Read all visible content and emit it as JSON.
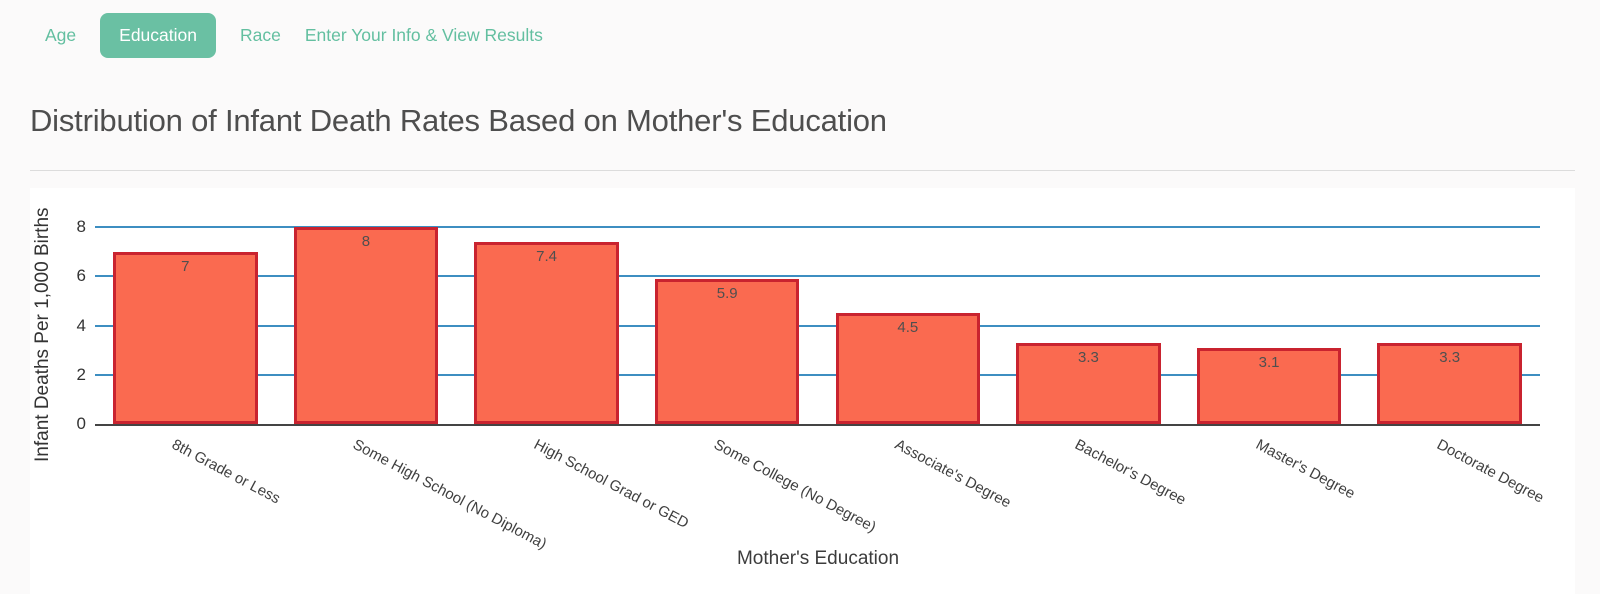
{
  "nav": {
    "tabs": [
      {
        "label": "Age",
        "active": false
      },
      {
        "label": "Education",
        "active": true
      },
      {
        "label": "Race",
        "active": false
      },
      {
        "label": "Enter Your Info & View Results",
        "active": false
      }
    ]
  },
  "page": {
    "title": "Distribution of Infant Death Rates Based on Mother's Education"
  },
  "chart_data": {
    "type": "bar",
    "title": "Distribution of Infant Death Rates Based on Mother's Education",
    "categories": [
      "8th Grade or Less",
      "Some High School (No Diploma)",
      "High School Grad or GED",
      "Some College (No Degree)",
      "Associate's Degree",
      "Bachelor's Degree",
      "Master's Degree",
      "Doctorate Degree"
    ],
    "values": [
      7,
      8,
      7.4,
      5.9,
      4.5,
      3.3,
      3.1,
      3.3
    ],
    "xlabel": "Mother's Education",
    "ylabel": "Infant Deaths Per 1,000 Births",
    "yticks": [
      0,
      2,
      4,
      6,
      8
    ],
    "ylim": [
      0,
      8
    ],
    "grid": true,
    "legend": "none",
    "colors": {
      "bar_fill": "#fa6a50",
      "bar_border": "#c9232f",
      "gridline": "#3d8ec1",
      "axis_line": "#444444",
      "accent_teal": "#6ac0a3"
    }
  }
}
